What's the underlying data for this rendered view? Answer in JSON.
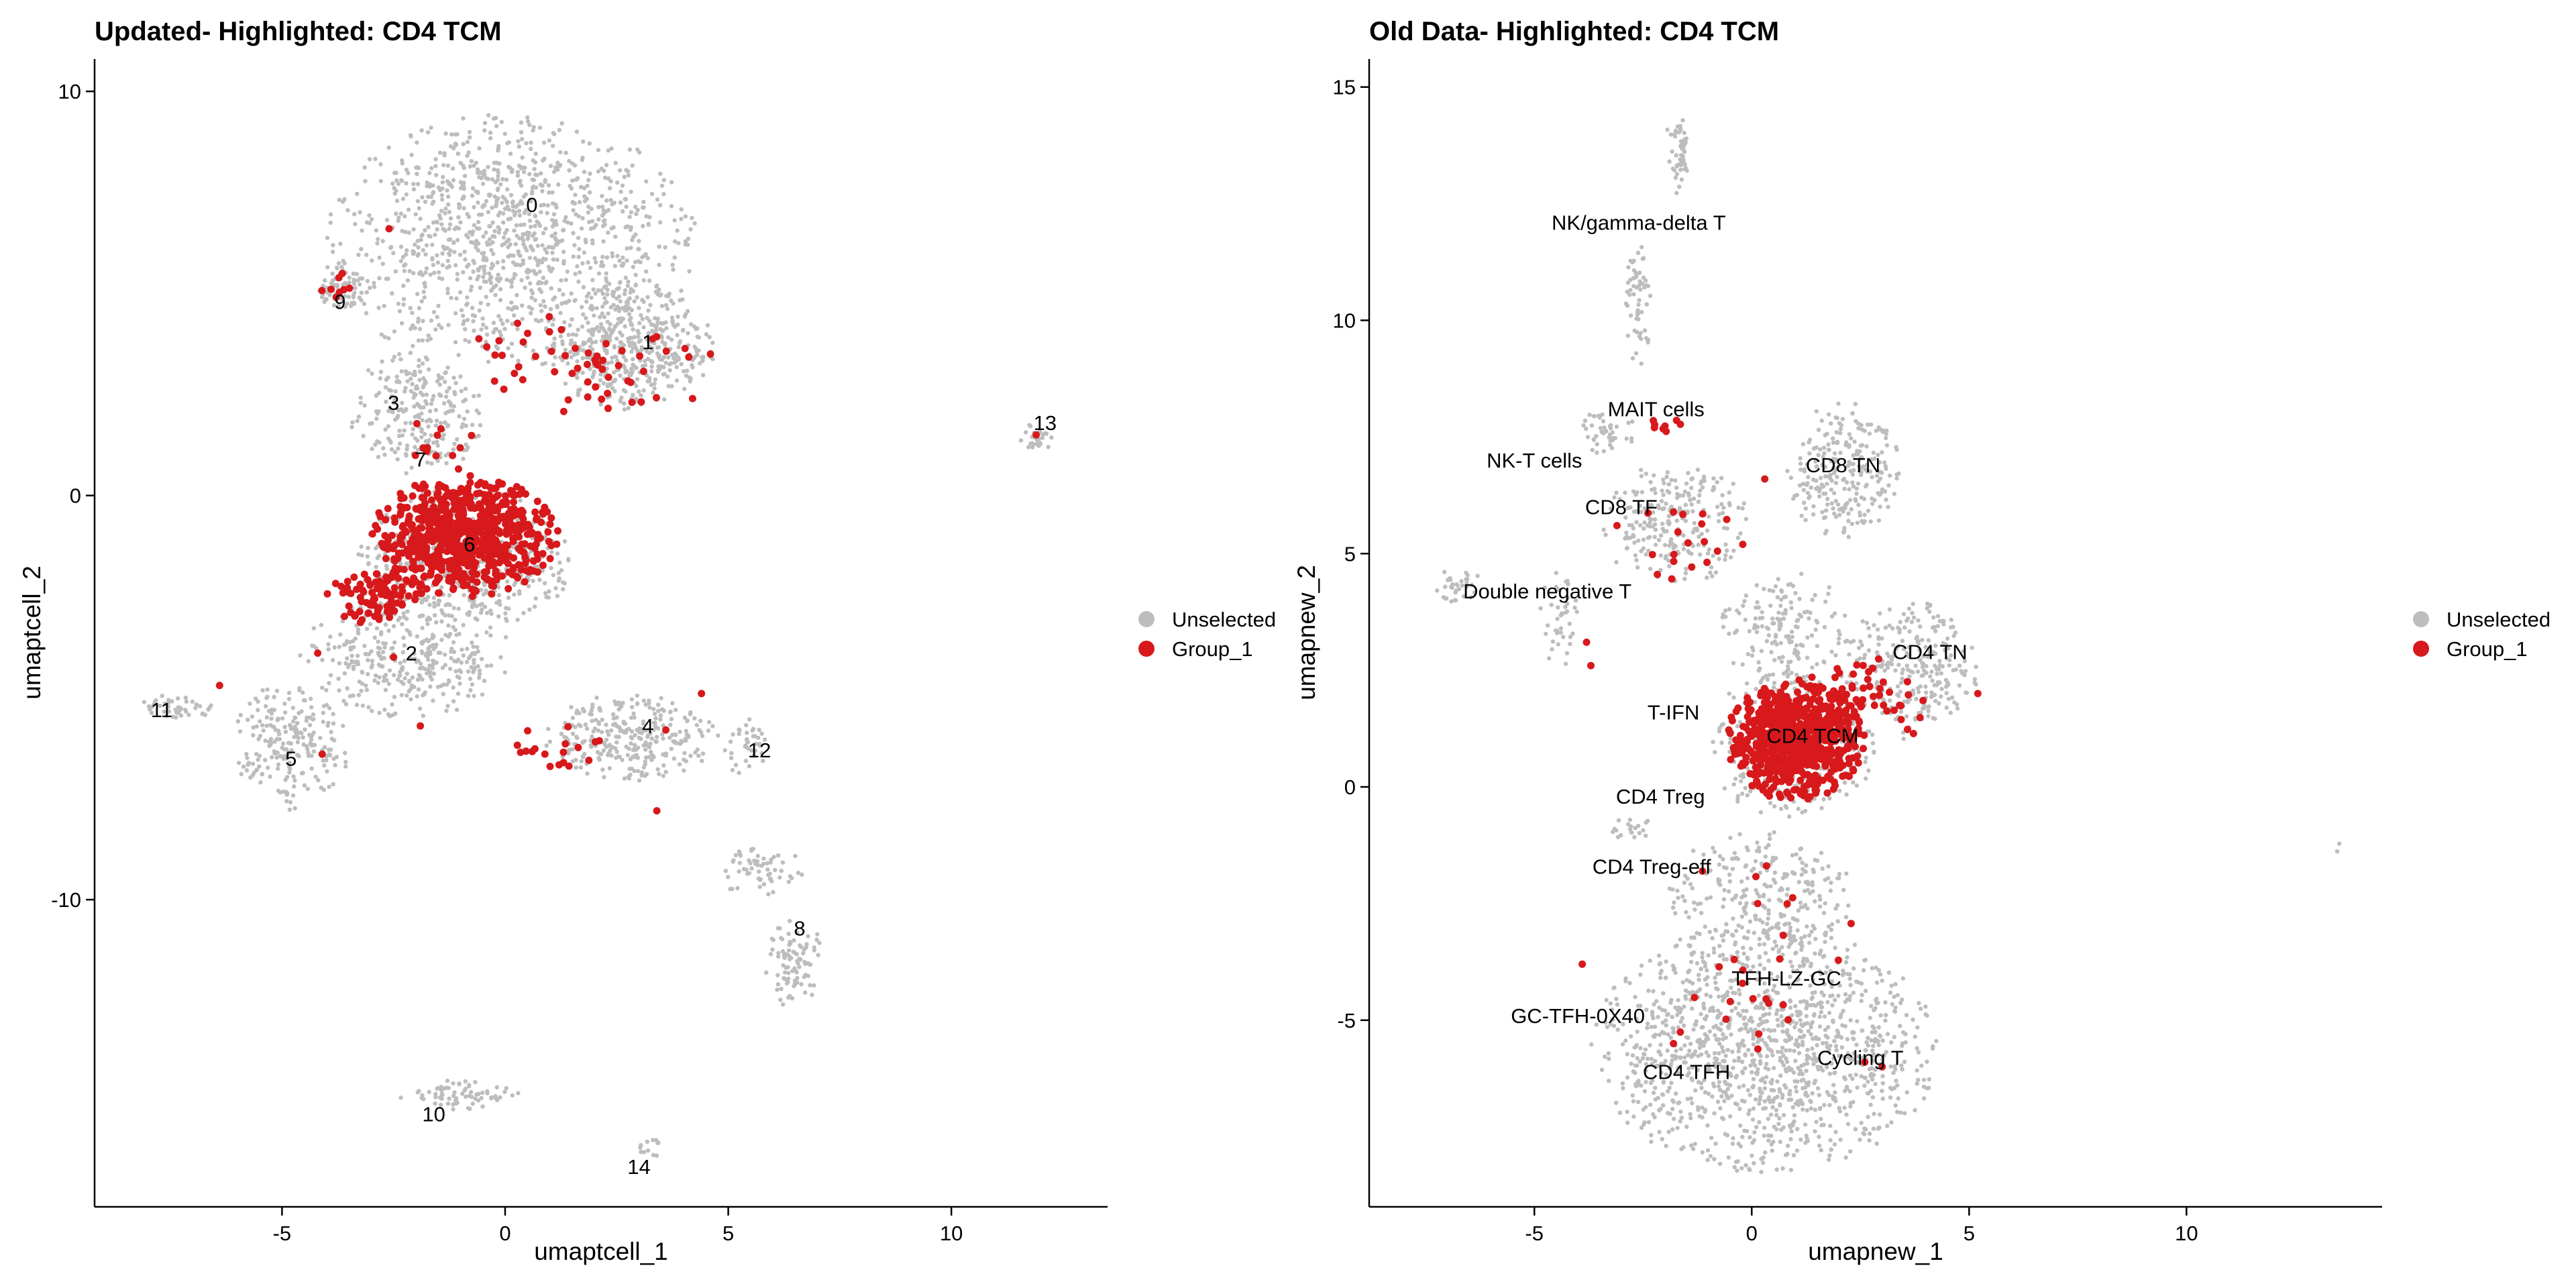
{
  "colors": {
    "unselected": "#bdbdbd",
    "group_1": "#d7191c"
  },
  "chart_data": [
    {
      "type": "scatter",
      "title": "Updated- Highlighted: CD4 TCM",
      "xlabel": "umaptcell_1",
      "ylabel": "umaptcell_2",
      "xlim": [
        -9.2,
        13.5
      ],
      "ylim": [
        -17.6,
        10.8
      ],
      "xticks": [
        -5,
        0,
        5,
        10
      ],
      "xtick_labels": [
        "-5",
        "0",
        "5",
        "10"
      ],
      "yticks": [
        -10,
        0,
        10
      ],
      "ytick_labels": [
        "-10",
        "0",
        "10"
      ],
      "grid": false,
      "legend": {
        "placement": "right",
        "entries": [
          {
            "label": "Unselected",
            "color": "#bdbdbd"
          },
          {
            "label": "Group_1",
            "color": "#d7191c"
          }
        ]
      },
      "regions": [
        {
          "cx": 0.1,
          "cy": 6.3,
          "rx": 4.2,
          "ry": 3.2,
          "n": 1100
        },
        {
          "cx": 2.8,
          "cy": 3.7,
          "rx": 1.9,
          "ry": 1.6,
          "n": 450
        },
        {
          "cx": -3.7,
          "cy": 5.2,
          "rx": 0.7,
          "ry": 0.6,
          "n": 60
        },
        {
          "cx": -2.0,
          "cy": 2.0,
          "rx": 1.5,
          "ry": 1.6,
          "n": 250
        },
        {
          "cx": -0.9,
          "cy": -1.6,
          "rx": 2.4,
          "ry": 1.8,
          "n": 500
        },
        {
          "cx": -2.2,
          "cy": -4.0,
          "rx": 2.4,
          "ry": 1.5,
          "n": 350
        },
        {
          "cx": -4.8,
          "cy": -6.2,
          "rx": 1.3,
          "ry": 1.6,
          "n": 220
        },
        {
          "cx": -7.3,
          "cy": -5.2,
          "rx": 0.9,
          "ry": 0.3,
          "n": 45
        },
        {
          "cx": 2.8,
          "cy": -6.0,
          "rx": 2.0,
          "ry": 1.1,
          "n": 300
        },
        {
          "cx": 5.4,
          "cy": -6.2,
          "rx": 0.5,
          "ry": 0.8,
          "n": 40
        },
        {
          "cx": 5.7,
          "cy": -9.3,
          "rx": 1.0,
          "ry": 0.7,
          "n": 60
        },
        {
          "cx": 6.5,
          "cy": -11.6,
          "rx": 0.7,
          "ry": 1.1,
          "n": 90
        },
        {
          "cx": -1.0,
          "cy": -14.8,
          "rx": 1.4,
          "ry": 0.4,
          "n": 70
        },
        {
          "cx": 3.3,
          "cy": -16.1,
          "rx": 0.3,
          "ry": 0.3,
          "n": 12
        },
        {
          "cx": 11.9,
          "cy": 1.4,
          "rx": 0.4,
          "ry": 0.4,
          "n": 30
        }
      ],
      "highlight_regions": [
        {
          "cx": -0.9,
          "cy": -1.0,
          "rx": 2.1,
          "ry": 1.5,
          "n": 700
        },
        {
          "cx": -2.9,
          "cy": -2.5,
          "rx": 1.1,
          "ry": 0.7,
          "n": 90
        },
        {
          "cx": 1.7,
          "cy": 3.3,
          "rx": 2.8,
          "ry": 1.3,
          "n": 55
        },
        {
          "cx": 1.0,
          "cy": -6.2,
          "rx": 1.3,
          "ry": 0.6,
          "n": 18
        },
        {
          "cx": -3.8,
          "cy": 5.2,
          "rx": 0.5,
          "ry": 0.4,
          "n": 8
        },
        {
          "cx": -1.5,
          "cy": 1.2,
          "rx": 1.0,
          "ry": 1.0,
          "n": 12
        }
      ],
      "highlight_points": [
        {
          "x": 3.4,
          "y": -7.8
        },
        {
          "x": 3.6,
          "y": -5.8
        },
        {
          "x": 4.4,
          "y": -4.9
        },
        {
          "x": 11.9,
          "y": 1.5
        },
        {
          "x": -6.4,
          "y": -4.7
        },
        {
          "x": -4.2,
          "y": -3.9
        },
        {
          "x": -2.6,
          "y": 6.6
        },
        {
          "x": 4.2,
          "y": 2.4
        },
        {
          "x": 4.6,
          "y": 3.5
        },
        {
          "x": -1.9,
          "y": -5.7
        },
        {
          "x": -4.1,
          "y": -6.4
        },
        {
          "x": -2.5,
          "y": -4.0
        }
      ],
      "labels": [
        {
          "text": "0",
          "x": 0.6,
          "y": 7.2
        },
        {
          "text": "1",
          "x": 3.2,
          "y": 3.8
        },
        {
          "text": "9",
          "x": -3.7,
          "y": 4.8
        },
        {
          "text": "3",
          "x": -2.5,
          "y": 2.3
        },
        {
          "text": "7",
          "x": -1.9,
          "y": 0.9
        },
        {
          "text": "6",
          "x": -0.8,
          "y": -1.2
        },
        {
          "text": "2",
          "x": -2.1,
          "y": -3.9
        },
        {
          "text": "11",
          "x": -7.7,
          "y": -5.3
        },
        {
          "text": "5",
          "x": -4.8,
          "y": -6.5
        },
        {
          "text": "4",
          "x": 3.2,
          "y": -5.7
        },
        {
          "text": "12",
          "x": 5.7,
          "y": -6.3
        },
        {
          "text": "8",
          "x": 6.6,
          "y": -10.7
        },
        {
          "text": "10",
          "x": -1.6,
          "y": -15.3
        },
        {
          "text": "14",
          "x": 3.0,
          "y": -16.6
        },
        {
          "text": "13",
          "x": 12.1,
          "y": 1.8
        }
      ]
    },
    {
      "type": "scatter",
      "title": "Old Data- Highlighted: CD4 TCM",
      "xlabel": "umapnew_1",
      "ylabel": "umapnew_2",
      "xlim": [
        -8.8,
        14.5
      ],
      "ylim": [
        -9.0,
        15.6
      ],
      "xticks": [
        -5,
        0,
        5,
        10
      ],
      "xtick_labels": [
        "-5",
        "0",
        "5",
        "10"
      ],
      "yticks": [
        -5,
        0,
        5,
        10,
        15
      ],
      "ytick_labels": [
        "-5",
        "0",
        "5",
        "10",
        "15"
      ],
      "grid": false,
      "legend": {
        "placement": "right",
        "entries": [
          {
            "label": "Unselected",
            "color": "#bdbdbd"
          },
          {
            "label": "Group_1",
            "color": "#d7191c"
          }
        ]
      },
      "regions": [
        {
          "cx": -1.7,
          "cy": 13.6,
          "rx": 0.3,
          "ry": 0.9,
          "n": 50
        },
        {
          "cx": -2.6,
          "cy": 10.4,
          "rx": 0.3,
          "ry": 1.4,
          "n": 60
        },
        {
          "cx": -3.3,
          "cy": 7.6,
          "rx": 0.6,
          "ry": 0.6,
          "n": 45
        },
        {
          "cx": -1.8,
          "cy": 5.7,
          "rx": 1.7,
          "ry": 1.4,
          "n": 250
        },
        {
          "cx": -6.8,
          "cy": 4.3,
          "rx": 0.6,
          "ry": 0.4,
          "n": 35
        },
        {
          "cx": -4.4,
          "cy": 3.6,
          "rx": 0.5,
          "ry": 1.1,
          "n": 40
        },
        {
          "cx": 2.1,
          "cy": 6.8,
          "rx": 1.3,
          "ry": 1.5,
          "n": 250
        },
        {
          "cx": 0.8,
          "cy": 3.4,
          "rx": 1.6,
          "ry": 1.2,
          "n": 160
        },
        {
          "cx": 3.6,
          "cy": 2.5,
          "rx": 1.6,
          "ry": 1.5,
          "n": 280
        },
        {
          "cx": 0.9,
          "cy": 0.9,
          "rx": 2.0,
          "ry": 1.6,
          "n": 320
        },
        {
          "cx": 0.2,
          "cy": -2.3,
          "rx": 2.1,
          "ry": 1.5,
          "n": 260
        },
        {
          "cx": 0.3,
          "cy": -5.6,
          "rx": 4.0,
          "ry": 2.7,
          "n": 1300
        },
        {
          "cx": -2.8,
          "cy": -0.9,
          "rx": 0.6,
          "ry": 0.3,
          "n": 20
        },
        {
          "cx": 13.5,
          "cy": -1.3,
          "rx": 0.1,
          "ry": 0.1,
          "n": 2
        }
      ],
      "highlight_regions": [
        {
          "cx": 1.0,
          "cy": 1.0,
          "rx": 1.6,
          "ry": 1.3,
          "n": 750
        },
        {
          "cx": 2.7,
          "cy": 1.9,
          "rx": 1.6,
          "ry": 1.0,
          "n": 55
        },
        {
          "cx": -1.4,
          "cy": 5.4,
          "rx": 1.6,
          "ry": 1.0,
          "n": 18
        },
        {
          "cx": 0.2,
          "cy": -3.8,
          "rx": 2.5,
          "ry": 2.4,
          "n": 25
        },
        {
          "cx": -2.0,
          "cy": 7.8,
          "rx": 0.4,
          "ry": 0.3,
          "n": 8
        }
      ],
      "highlight_points": [
        {
          "x": 5.2,
          "y": 2.0
        },
        {
          "x": -3.8,
          "y": 3.1
        },
        {
          "x": -3.7,
          "y": 2.6
        },
        {
          "x": -3.9,
          "y": -3.8
        },
        {
          "x": 2.6,
          "y": -5.9
        },
        {
          "x": 3.0,
          "y": -6.0
        },
        {
          "x": -1.8,
          "y": -5.5
        },
        {
          "x": -3.1,
          "y": 5.6
        },
        {
          "x": 0.3,
          "y": 6.6
        }
      ],
      "labels": [
        {
          "text": "NK/gamma-delta T",
          "x": -2.6,
          "y": 12.1
        },
        {
          "text": "MAIT cells",
          "x": -2.2,
          "y": 8.1
        },
        {
          "text": "NK-T cells",
          "x": -5.0,
          "y": 7.0
        },
        {
          "text": "CD8 TN",
          "x": 2.1,
          "y": 6.9
        },
        {
          "text": "CD8 TF",
          "x": -3.0,
          "y": 6.0
        },
        {
          "text": "Double negative T",
          "x": -4.7,
          "y": 4.2
        },
        {
          "text": "CD4 TN",
          "x": 4.1,
          "y": 2.9
        },
        {
          "text": "T-IFN",
          "x": -1.8,
          "y": 1.6
        },
        {
          "text": "CD4 TCM",
          "x": 1.4,
          "y": 1.1
        },
        {
          "text": "CD4 Treg",
          "x": -2.1,
          "y": -0.2
        },
        {
          "text": "CD4 Treg-eff",
          "x": -2.3,
          "y": -1.7
        },
        {
          "text": "TFH-LZ-GC",
          "x": 0.8,
          "y": -4.1
        },
        {
          "text": "GC-TFH-0X40",
          "x": -4.0,
          "y": -4.9
        },
        {
          "text": "CD4 TFH",
          "x": -1.5,
          "y": -6.1
        },
        {
          "text": "Cycling T",
          "x": 2.5,
          "y": -5.8
        }
      ]
    }
  ]
}
